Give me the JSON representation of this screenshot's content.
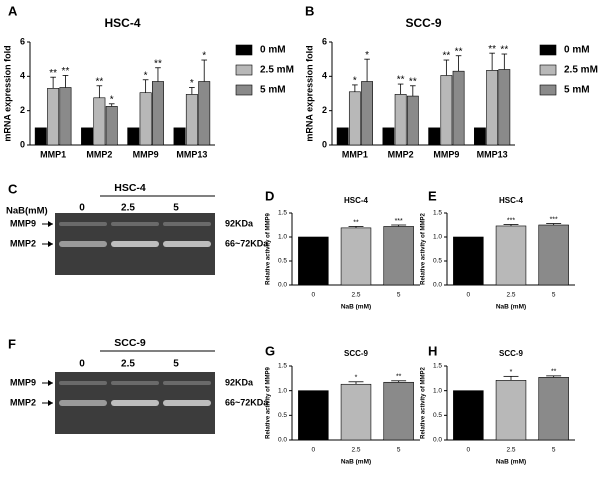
{
  "chart_data": [
    {
      "type": "bar",
      "panel": "A",
      "title": "HSC-4",
      "ylabel": "mRNA expression fold",
      "categories": [
        "MMP1",
        "MMP2",
        "MMP9",
        "MMP13"
      ],
      "series": [
        {
          "name": "0 mM",
          "color": "#000000",
          "values": [
            1,
            1,
            1,
            1
          ],
          "errors": [
            0,
            0,
            0,
            0
          ]
        },
        {
          "name": "2.5 mM",
          "color": "#b8b8b8",
          "values": [
            3.3,
            2.75,
            3.05,
            2.95
          ],
          "errors": [
            0.65,
            0.7,
            0.75,
            0.4
          ],
          "significance": [
            "**",
            "**",
            "*",
            "*"
          ]
        },
        {
          "name": "5 mM",
          "color": "#8a8a8a",
          "values": [
            3.35,
            2.25,
            3.7,
            3.7
          ],
          "errors": [
            0.7,
            0.15,
            0.8,
            1.25
          ],
          "significance": [
            "**",
            "*",
            "**",
            "*"
          ]
        }
      ],
      "ylim": [
        0,
        6
      ],
      "yticks": [
        0,
        2,
        4,
        6
      ]
    },
    {
      "type": "bar",
      "panel": "B",
      "title": "SCC-9",
      "ylabel": "mRNA expression fold",
      "categories": [
        "MMP1",
        "MMP2",
        "MMP9",
        "MMP13"
      ],
      "series": [
        {
          "name": "0 mM",
          "color": "#000000",
          "values": [
            1,
            1,
            1,
            1
          ],
          "errors": [
            0,
            0,
            0,
            0
          ]
        },
        {
          "name": "2.5 mM",
          "color": "#b8b8b8",
          "values": [
            3.1,
            2.95,
            4.05,
            4.35
          ],
          "errors": [
            0.4,
            0.6,
            0.9,
            1.0
          ],
          "significance": [
            "*",
            "**",
            "**",
            "**"
          ]
        },
        {
          "name": "5 mM",
          "color": "#8a8a8a",
          "values": [
            3.7,
            2.85,
            4.3,
            4.4
          ],
          "errors": [
            1.3,
            0.6,
            0.9,
            0.9
          ],
          "significance": [
            "*",
            "**",
            "**",
            "**"
          ]
        }
      ],
      "ylim": [
        0,
        6
      ],
      "yticks": [
        0,
        2,
        4,
        6
      ]
    },
    {
      "type": "bar",
      "panel": "D",
      "title": "HSC-4",
      "ylabel": "Relative activity of MMP9",
      "xlabel": "NaB (mM)",
      "categories": [
        "0",
        "2.5",
        "5"
      ],
      "values": [
        1,
        1.19,
        1.22
      ],
      "errors": [
        0,
        0.03,
        0.03
      ],
      "significance": [
        null,
        "**",
        "***"
      ],
      "colors": [
        "#000000",
        "#b8b8b8",
        "#8a8a8a"
      ],
      "ylim": [
        0,
        1.5
      ],
      "yticks": [
        {
          "value": 0,
          "label": "0.0"
        },
        {
          "value": 0.5,
          "label": "0.5"
        },
        {
          "value": 1,
          "label": "1.0"
        },
        {
          "value": 1.5,
          "label": "1.5"
        }
      ]
    },
    {
      "type": "bar",
      "panel": "E",
      "title": "HSC-4",
      "ylabel": "Relative activity of MMP2",
      "xlabel": "NaB (mM)",
      "categories": [
        "0",
        "2.5",
        "5"
      ],
      "values": [
        1,
        1.23,
        1.25
      ],
      "errors": [
        0,
        0.03,
        0.03
      ],
      "significance": [
        null,
        "***",
        "***"
      ],
      "colors": [
        "#000000",
        "#b8b8b8",
        "#8a8a8a"
      ],
      "ylim": [
        0,
        1.5
      ],
      "yticks": [
        {
          "value": 0,
          "label": "0.0"
        },
        {
          "value": 0.5,
          "label": "0.5"
        },
        {
          "value": 1,
          "label": "1.0"
        },
        {
          "value": 1.5,
          "label": "1.5"
        }
      ]
    },
    {
      "type": "bar",
      "panel": "G",
      "title": "SCC-9",
      "ylabel": "Relative activity of MMP9",
      "xlabel": "NaB (mM)",
      "categories": [
        "0",
        "2.5",
        "5"
      ],
      "values": [
        1,
        1.13,
        1.17
      ],
      "errors": [
        0,
        0.05,
        0.03
      ],
      "significance": [
        null,
        "*",
        "**"
      ],
      "colors": [
        "#000000",
        "#b8b8b8",
        "#8a8a8a"
      ],
      "ylim": [
        0,
        1.5
      ],
      "yticks": [
        {
          "value": 0,
          "label": "0.0"
        },
        {
          "value": 0.5,
          "label": "0.5"
        },
        {
          "value": 1,
          "label": "1.0"
        },
        {
          "value": 1.5,
          "label": "1.5"
        }
      ]
    },
    {
      "type": "bar",
      "panel": "H",
      "title": "SCC-9",
      "ylabel": "Relative activity of MMP2",
      "xlabel": "NaB (mM)",
      "categories": [
        "0",
        "2.5",
        "5"
      ],
      "values": [
        1,
        1.21,
        1.27
      ],
      "errors": [
        0,
        0.08,
        0.03
      ],
      "significance": [
        null,
        "*",
        "**"
      ],
      "colors": [
        "#000000",
        "#b8b8b8",
        "#8a8a8a"
      ],
      "ylim": [
        0,
        1.5
      ],
      "yticks": [
        {
          "value": 0,
          "label": "0.0"
        },
        {
          "value": 0.5,
          "label": "0.5"
        },
        {
          "value": 1,
          "label": "1.0"
        },
        {
          "value": 1.5,
          "label": "1.5"
        }
      ]
    }
  ],
  "gels": [
    {
      "panel": "C",
      "treatment": "NaB(mM)",
      "group": "HSC-4",
      "lanes": [
        "0",
        "2.5",
        "5"
      ],
      "bands": [
        "MMP9",
        "MMP2"
      ],
      "sizes": [
        "92KDa",
        "66~72KDa"
      ]
    },
    {
      "panel": "F",
      "group": "SCC-9",
      "lanes": [
        "0",
        "2.5",
        "5"
      ],
      "bands": [
        "MMP9",
        "MMP2"
      ],
      "sizes": [
        "92KDa",
        "66~72KDa"
      ]
    }
  ]
}
